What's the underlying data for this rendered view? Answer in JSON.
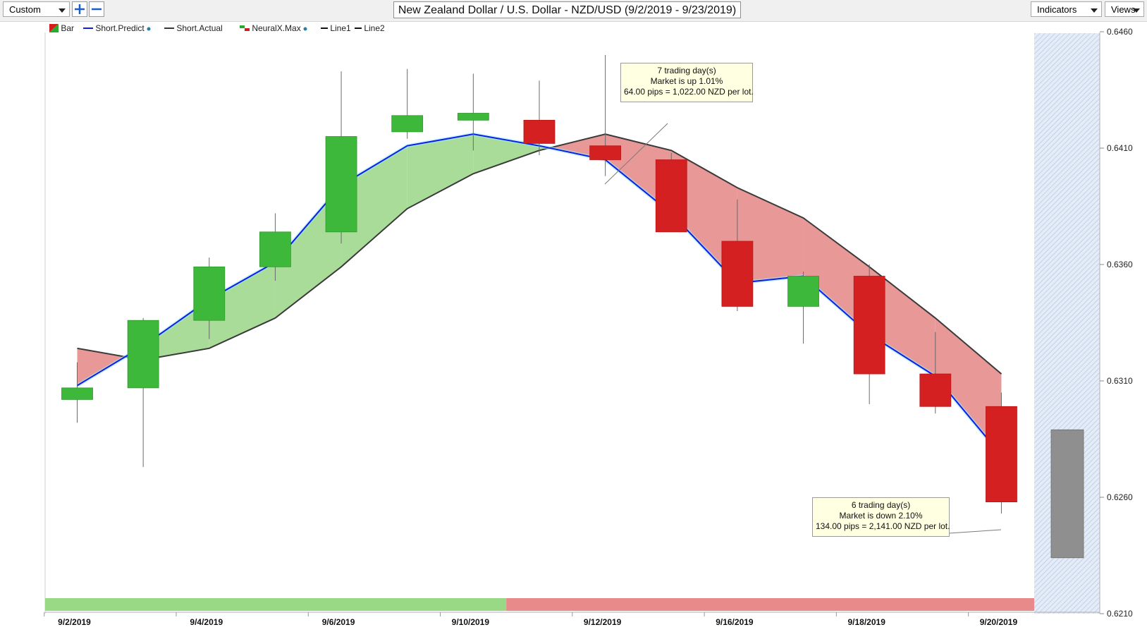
{
  "toolbar": {
    "preset_value": "Custom",
    "title": "New Zealand Dollar / U.S. Dollar - NZD/USD (9/2/2019 - 9/23/2019)",
    "indicators_label": "Indicators",
    "views_label": "Views"
  },
  "legend": [
    {
      "label": "Bar",
      "color": "#2da82d",
      "color2": "#d41c1c",
      "kind": "bar"
    },
    {
      "label": "Short.Predict",
      "color": "#0b1fe8",
      "kind": "line",
      "dot": true
    },
    {
      "label": "Short.Actual",
      "color": "#3a3a3a",
      "kind": "line"
    },
    {
      "label": "NeuralX.Max",
      "color": "#2da82d",
      "color2": "#d41c1c",
      "kind": "flag",
      "dot": true
    },
    {
      "label": "Line1",
      "color": "#111111",
      "kind": "line"
    },
    {
      "label": "Line2",
      "color": "#111111",
      "kind": "line"
    }
  ],
  "annotations": [
    {
      "line1": "7 trading day(s)",
      "line2": "Market is up 1.01%",
      "line3": "64.00 pips = 1,022.00 NZD per lot."
    },
    {
      "line1": "6 trading day(s)",
      "line2": "Market is down 2.10%",
      "line3": "134.00 pips = 2,141.00 NZD per lot."
    }
  ],
  "chart_data": {
    "type": "candlestick",
    "ylim": [
      0.621,
      0.646
    ],
    "y_ticks": [
      "0.6460",
      "0.6410",
      "0.6360",
      "0.6310",
      "0.6260",
      "0.6210"
    ],
    "x_ticks": [
      "9/2/2019",
      "9/4/2019",
      "9/6/2019",
      "9/10/2019",
      "9/12/2019",
      "9/16/2019",
      "9/18/2019",
      "9/20/2019"
    ],
    "colors": {
      "up": "#3db83a",
      "down": "#d42020",
      "up_fill": "#a8dc98",
      "down_fill": "#e99898",
      "predict": "#0b1fe8",
      "actual": "#3a3a3a",
      "forecast_bar": "#8f8f8f"
    },
    "candles": [
      {
        "open": 0.6302,
        "high": 0.6318,
        "low": 0.6292,
        "close": 0.6307
      },
      {
        "open": 0.6307,
        "high": 0.6337,
        "low": 0.6273,
        "close": 0.6336
      },
      {
        "open": 0.6336,
        "high": 0.6363,
        "low": 0.6328,
        "close": 0.6359
      },
      {
        "open": 0.6359,
        "high": 0.6382,
        "low": 0.6353,
        "close": 0.6374
      },
      {
        "open": 0.6374,
        "high": 0.6443,
        "low": 0.6369,
        "close": 0.6415
      },
      {
        "open": 0.6417,
        "high": 0.6444,
        "low": 0.6414,
        "close": 0.6424
      },
      {
        "open": 0.6422,
        "high": 0.6442,
        "low": 0.6409,
        "close": 0.6425
      },
      {
        "open": 0.6422,
        "high": 0.6439,
        "low": 0.6407,
        "close": 0.6412
      },
      {
        "open": 0.6411,
        "high": 0.645,
        "low": 0.6398,
        "close": 0.6405
      },
      {
        "open": 0.6405,
        "high": 0.6408,
        "low": 0.6374,
        "close": 0.6374
      },
      {
        "open": 0.637,
        "high": 0.6388,
        "low": 0.634,
        "close": 0.6342
      },
      {
        "open": 0.6342,
        "high": 0.6357,
        "low": 0.6326,
        "close": 0.6355
      },
      {
        "open": 0.6355,
        "high": 0.636,
        "low": 0.63,
        "close": 0.6313
      },
      {
        "open": 0.6313,
        "high": 0.6331,
        "low": 0.6296,
        "close": 0.6299
      },
      {
        "open": 0.6299,
        "high": 0.6305,
        "low": 0.6253,
        "close": 0.6258
      }
    ],
    "short_predict": [
      0.6308,
      0.6325,
      0.6345,
      0.6361,
      0.6394,
      0.6411,
      0.6416,
      0.6411,
      0.6405,
      0.6382,
      0.6352,
      0.6355,
      0.633,
      0.6312,
      0.6278
    ],
    "short_actual": [
      0.6324,
      0.6319,
      0.6324,
      0.6337,
      0.6359,
      0.6384,
      0.6399,
      0.6409,
      0.6416,
      0.6409,
      0.6393,
      0.638,
      0.6359,
      0.6337,
      0.6313
    ],
    "forecast_bar": {
      "high": 0.6289,
      "low": 0.6234
    },
    "bottom_bar": [
      {
        "from": 0,
        "to": 6,
        "state": "up"
      },
      {
        "from": 7,
        "to": 14,
        "state": "down"
      }
    ]
  }
}
